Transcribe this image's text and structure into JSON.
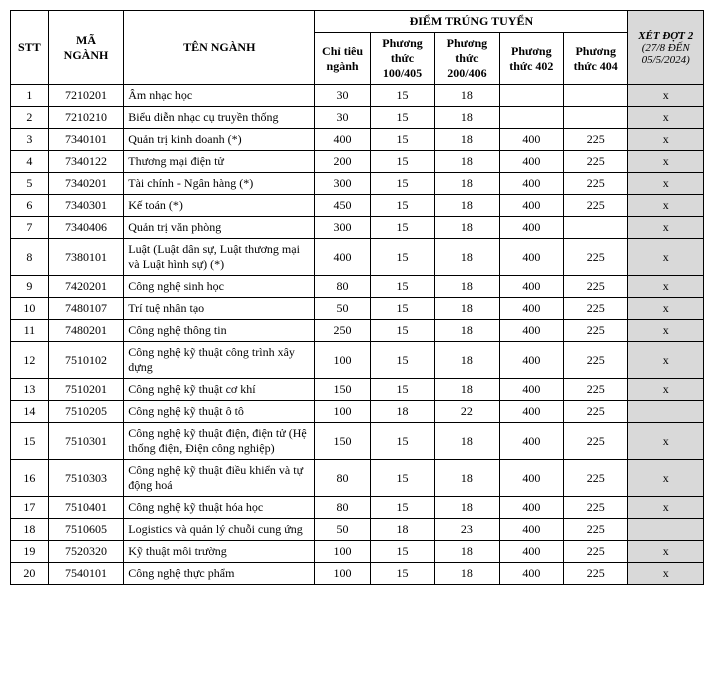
{
  "headers": {
    "stt": "STT",
    "ma": "MÃ NGÀNH",
    "ten": "TÊN NGÀNH",
    "diem_group": "ĐIỂM TRÚNG TUYỂN",
    "chi": "Chỉ tiêu ngành",
    "p1": "Phương thức 100/405",
    "p2": "Phương thức 200/406",
    "p3": "Phương thức 402",
    "p4": "Phương thức 404",
    "xet_line1": "XÉT ĐỢT 2",
    "xet_line2": "(27/8 ĐẾN 05/5/2024)"
  },
  "rows": [
    {
      "stt": "1",
      "ma": "7210201",
      "ten": "Âm nhạc học",
      "chi": "30",
      "p1": "15",
      "p2": "18",
      "p3": "",
      "p4": "",
      "xet": "x"
    },
    {
      "stt": "2",
      "ma": "7210210",
      "ten": "Biểu diễn nhạc cụ truyền thống",
      "chi": "30",
      "p1": "15",
      "p2": "18",
      "p3": "",
      "p4": "",
      "xet": "x"
    },
    {
      "stt": "3",
      "ma": "7340101",
      "ten": "Quản trị kinh doanh (*)",
      "chi": "400",
      "p1": "15",
      "p2": "18",
      "p3": "400",
      "p4": "225",
      "xet": "x"
    },
    {
      "stt": "4",
      "ma": "7340122",
      "ten": "Thương mại điện tử",
      "chi": "200",
      "p1": "15",
      "p2": "18",
      "p3": "400",
      "p4": "225",
      "xet": "x"
    },
    {
      "stt": "5",
      "ma": "7340201",
      "ten": "Tài chính - Ngân hàng (*)",
      "chi": "300",
      "p1": "15",
      "p2": "18",
      "p3": "400",
      "p4": "225",
      "xet": "x"
    },
    {
      "stt": "6",
      "ma": "7340301",
      "ten": "Kế toán (*)",
      "chi": "450",
      "p1": "15",
      "p2": "18",
      "p3": "400",
      "p4": "225",
      "xet": "x"
    },
    {
      "stt": "7",
      "ma": "7340406",
      "ten": "Quản trị văn phòng",
      "chi": "300",
      "p1": "15",
      "p2": "18",
      "p3": "400",
      "p4": "",
      "xet": "x"
    },
    {
      "stt": "8",
      "ma": "7380101",
      "ten": "Luật (Luật dân sự, Luật thương mại và Luật hình sự) (*)",
      "chi": "400",
      "p1": "15",
      "p2": "18",
      "p3": "400",
      "p4": "225",
      "xet": "x"
    },
    {
      "stt": "9",
      "ma": "7420201",
      "ten": "Công nghệ sinh học",
      "chi": "80",
      "p1": "15",
      "p2": "18",
      "p3": "400",
      "p4": "225",
      "xet": "x"
    },
    {
      "stt": "10",
      "ma": "7480107",
      "ten": "Trí tuệ nhân tạo",
      "chi": "50",
      "p1": "15",
      "p2": "18",
      "p3": "400",
      "p4": "225",
      "xet": "x"
    },
    {
      "stt": "11",
      "ma": "7480201",
      "ten": "Công nghệ thông tin",
      "chi": "250",
      "p1": "15",
      "p2": "18",
      "p3": "400",
      "p4": "225",
      "xet": "x"
    },
    {
      "stt": "12",
      "ma": "7510102",
      "ten": "Công nghệ kỹ thuật công trình xây dựng",
      "chi": "100",
      "p1": "15",
      "p2": "18",
      "p3": "400",
      "p4": "225",
      "xet": "x"
    },
    {
      "stt": "13",
      "ma": "7510201",
      "ten": "Công nghệ kỹ thuật cơ khí",
      "chi": "150",
      "p1": "15",
      "p2": "18",
      "p3": "400",
      "p4": "225",
      "xet": "x"
    },
    {
      "stt": "14",
      "ma": "7510205",
      "ten": "Công nghệ kỹ thuật ô tô",
      "chi": "100",
      "p1": "18",
      "p2": "22",
      "p3": "400",
      "p4": "225",
      "xet": ""
    },
    {
      "stt": "15",
      "ma": "7510301",
      "ten": "Công nghệ kỹ thuật điện, điện tử (Hệ thống điện, Điện công nghiệp)",
      "chi": "150",
      "p1": "15",
      "p2": "18",
      "p3": "400",
      "p4": "225",
      "xet": "x"
    },
    {
      "stt": "16",
      "ma": "7510303",
      "ten": "Công nghệ kỹ thuật điều khiển và tự động hoá",
      "chi": "80",
      "p1": "15",
      "p2": "18",
      "p3": "400",
      "p4": "225",
      "xet": "x"
    },
    {
      "stt": "17",
      "ma": "7510401",
      "ten": "Công nghệ kỹ thuật hóa học",
      "chi": "80",
      "p1": "15",
      "p2": "18",
      "p3": "400",
      "p4": "225",
      "xet": "x"
    },
    {
      "stt": "18",
      "ma": "7510605",
      "ten": "Logistics và quản lý chuỗi cung ứng",
      "chi": "50",
      "p1": "18",
      "p2": "23",
      "p3": "400",
      "p4": "225",
      "xet": ""
    },
    {
      "stt": "19",
      "ma": "7520320",
      "ten": "Kỹ thuật môi trường",
      "chi": "100",
      "p1": "15",
      "p2": "18",
      "p3": "400",
      "p4": "225",
      "xet": "x"
    },
    {
      "stt": "20",
      "ma": "7540101",
      "ten": "Công nghệ thực phẩm",
      "chi": "100",
      "p1": "15",
      "p2": "18",
      "p3": "400",
      "p4": "225",
      "xet": "x"
    }
  ]
}
